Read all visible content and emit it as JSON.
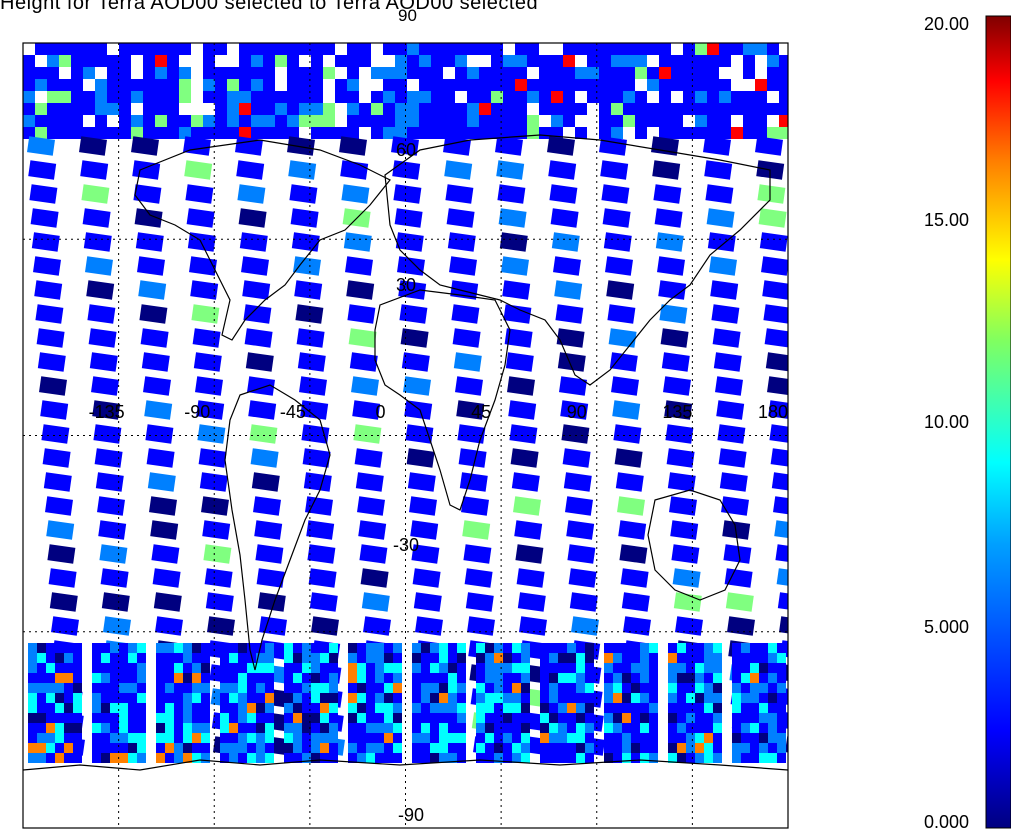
{
  "title": "Height for Terra AOD00 selected to Terra AOD00 selected",
  "map": {
    "grid_labels": {
      "top": "90",
      "bottom": "-90",
      "lat_60": "60",
      "lat_30": "30",
      "lat_m30": "-30",
      "lon": [
        "-135",
        "-90",
        "-45",
        "0",
        "45",
        "90",
        "135",
        "180"
      ]
    },
    "projection": "cylindrical equidistant",
    "lat_range": [
      -90,
      90
    ],
    "lon_range": [
      -180,
      180
    ]
  },
  "colorbar": {
    "ticks": [
      "20.00",
      "15.00",
      "10.00",
      "5.000",
      "0.000"
    ],
    "range": [
      0,
      20
    ],
    "colors": [
      "#000080",
      "#0000ff",
      "#0080ff",
      "#00ffff",
      "#80ff80",
      "#ffff00",
      "#ff8000",
      "#ff0000",
      "#800000"
    ]
  }
}
